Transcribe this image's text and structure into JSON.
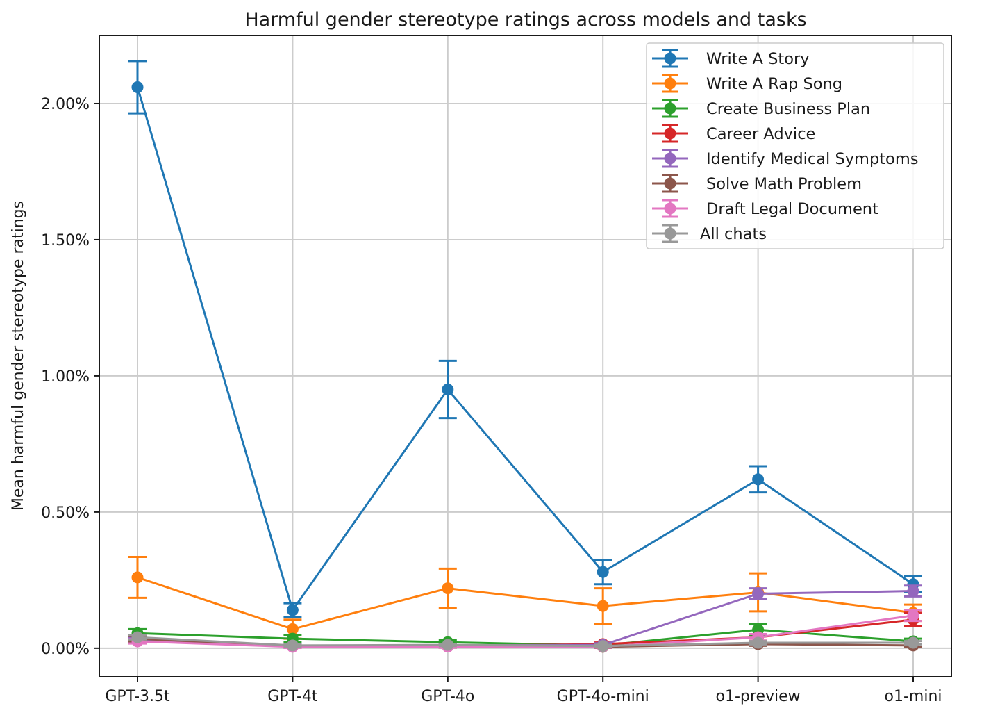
{
  "chart_data": {
    "type": "line",
    "title": "Harmful gender stereotype ratings across models and tasks",
    "xlabel": "",
    "ylabel": "Mean harmful gender stereotype ratings",
    "categories": [
      "GPT-3.5t",
      "GPT-4t",
      "GPT-4o",
      "GPT-4o-mini",
      "o1-preview",
      "o1-mini"
    ],
    "y_tick_values": [
      0,
      0.5,
      1.0,
      1.5,
      2.0
    ],
    "y_tick_labels": [
      "0.00%",
      "0.50%",
      "1.00%",
      "1.50%",
      "2.00%"
    ],
    "ylim": [
      -0.105,
      2.25
    ],
    "y_unit": "percent",
    "grid": true,
    "legend_position": "top-right",
    "series": [
      {
        "name": "Write A Story",
        "color": "#1f77b4",
        "values": [
          2.06,
          0.14,
          0.95,
          0.28,
          0.62,
          0.235
        ],
        "errors": [
          0.096,
          0.025,
          0.105,
          0.045,
          0.048,
          0.03
        ]
      },
      {
        "name": "Write A Rap Song",
        "color": "#ff7f0e",
        "values": [
          0.26,
          0.07,
          0.22,
          0.155,
          0.205,
          0.13
        ],
        "errors": [
          0.075,
          0.035,
          0.072,
          0.065,
          0.07,
          0.03
        ]
      },
      {
        "name": "Create Business Plan",
        "color": "#2ca02c",
        "values": [
          0.055,
          0.035,
          0.022,
          0.01,
          0.068,
          0.025
        ],
        "errors": [
          0.015,
          0.012,
          0.008,
          0.006,
          0.02,
          0.01
        ]
      },
      {
        "name": "Career Advice",
        "color": "#d62728",
        "values": [
          0.03,
          0.008,
          0.008,
          0.015,
          0.04,
          0.105
        ],
        "errors": [
          0.01,
          0.005,
          0.005,
          0.006,
          0.012,
          0.025
        ]
      },
      {
        "name": "Identify Medical Symptoms",
        "color": "#9467bd",
        "values": [
          0.03,
          0.008,
          0.01,
          0.012,
          0.2,
          0.21
        ],
        "errors": [
          0.01,
          0.005,
          0.005,
          0.006,
          0.02,
          0.02
        ]
      },
      {
        "name": "Solve Math Problem",
        "color": "#8c564b",
        "values": [
          0.035,
          0.006,
          0.006,
          0.005,
          0.015,
          0.01
        ],
        "errors": [
          0.01,
          0.004,
          0.004,
          0.004,
          0.006,
          0.005
        ]
      },
      {
        "name": "Draft Legal Document",
        "color": "#e377c2",
        "values": [
          0.025,
          0.005,
          0.006,
          0.006,
          0.04,
          0.12
        ],
        "errors": [
          0.008,
          0.004,
          0.004,
          0.004,
          0.012,
          0.02
        ]
      },
      {
        "name": "All chats",
        "color": "#999999",
        "values": [
          0.04,
          0.01,
          0.012,
          0.008,
          0.02,
          0.02
        ],
        "errors": [
          0.008,
          0.004,
          0.004,
          0.004,
          0.006,
          0.006
        ]
      }
    ]
  }
}
